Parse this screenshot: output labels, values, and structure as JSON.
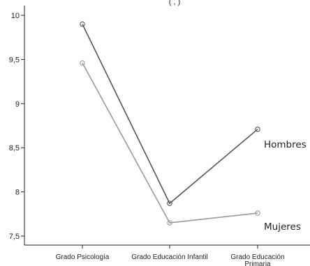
{
  "chart_data": {
    "type": "line",
    "categories": [
      "Grado Psicología",
      "Grado Educación Infantil",
      "Grado Educación Primaria"
    ],
    "ylim": [
      7.36,
      10.1
    ],
    "yticks": [
      "10",
      "9,5",
      "9",
      "8,5",
      "8",
      "7,5"
    ],
    "ytick_values": [
      10,
      9.5,
      9,
      8.5,
      8,
      7.5
    ],
    "grid": false,
    "legend": "right-of-lines",
    "series": [
      {
        "name": "Hombres",
        "values": [
          9.9,
          7.87,
          8.71
        ],
        "color": "#555555"
      },
      {
        "name": "Mujeres",
        "values": [
          9.46,
          7.65,
          7.76
        ],
        "color": "#9a9a9a"
      }
    ],
    "title_fragment": "( , )"
  }
}
